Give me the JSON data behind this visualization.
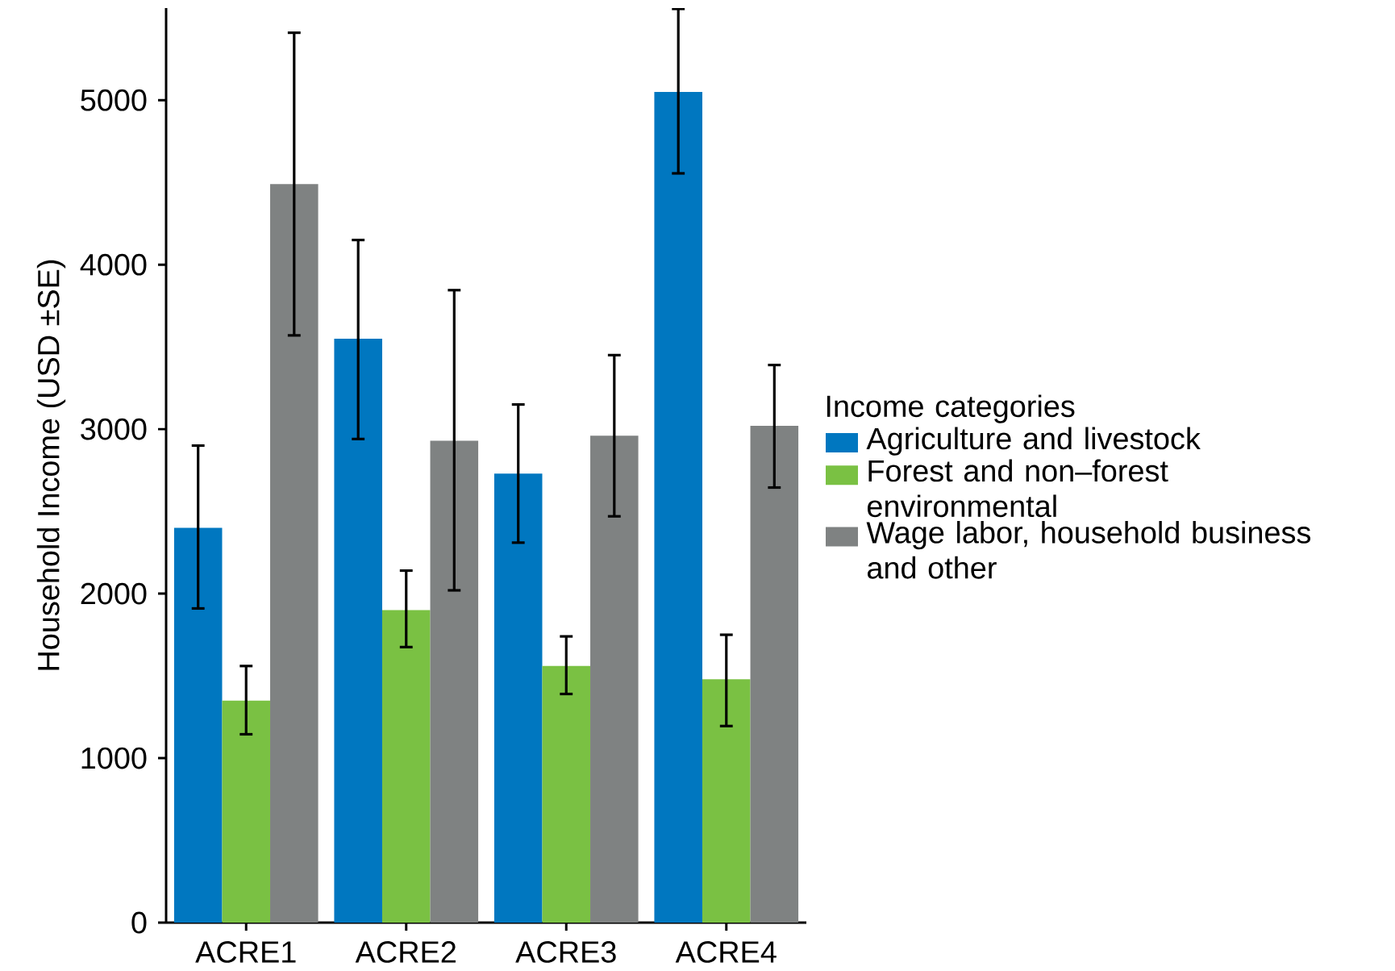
{
  "chart_data": {
    "type": "bar",
    "ylabel": "Household Income (USD ±SE)",
    "legend_title": "Income categories",
    "categories": [
      "ACRE1",
      "ACRE2",
      "ACRE3",
      "ACRE4"
    ],
    "series": [
      {
        "name": "Agriculture and livestock",
        "color": "#0077c0",
        "values": [
          2400,
          3550,
          2730,
          5050
        ],
        "errors": [
          [
            1910,
            2900
          ],
          [
            2940,
            4150
          ],
          [
            2310,
            3150
          ],
          [
            4555,
            5555
          ]
        ]
      },
      {
        "name": "Forest and non–forest environmental",
        "color": "#7ac143",
        "values": [
          1350,
          1900,
          1560,
          1480
        ],
        "errors": [
          [
            1145,
            1560
          ],
          [
            1675,
            2140
          ],
          [
            1390,
            1740
          ],
          [
            1195,
            1750
          ]
        ]
      },
      {
        "name": "Wage labor, household business and other",
        "color": "#7f8282",
        "values": [
          4490,
          2930,
          2960,
          3020
        ],
        "errors": [
          [
            3570,
            5410
          ],
          [
            2020,
            3845
          ],
          [
            2470,
            3450
          ],
          [
            2645,
            3390
          ]
        ]
      }
    ],
    "ylim": [
      0,
      5560
    ],
    "yticks": [
      0,
      1000,
      2000,
      3000,
      4000,
      5000
    ],
    "legend": "right",
    "grid": false
  }
}
